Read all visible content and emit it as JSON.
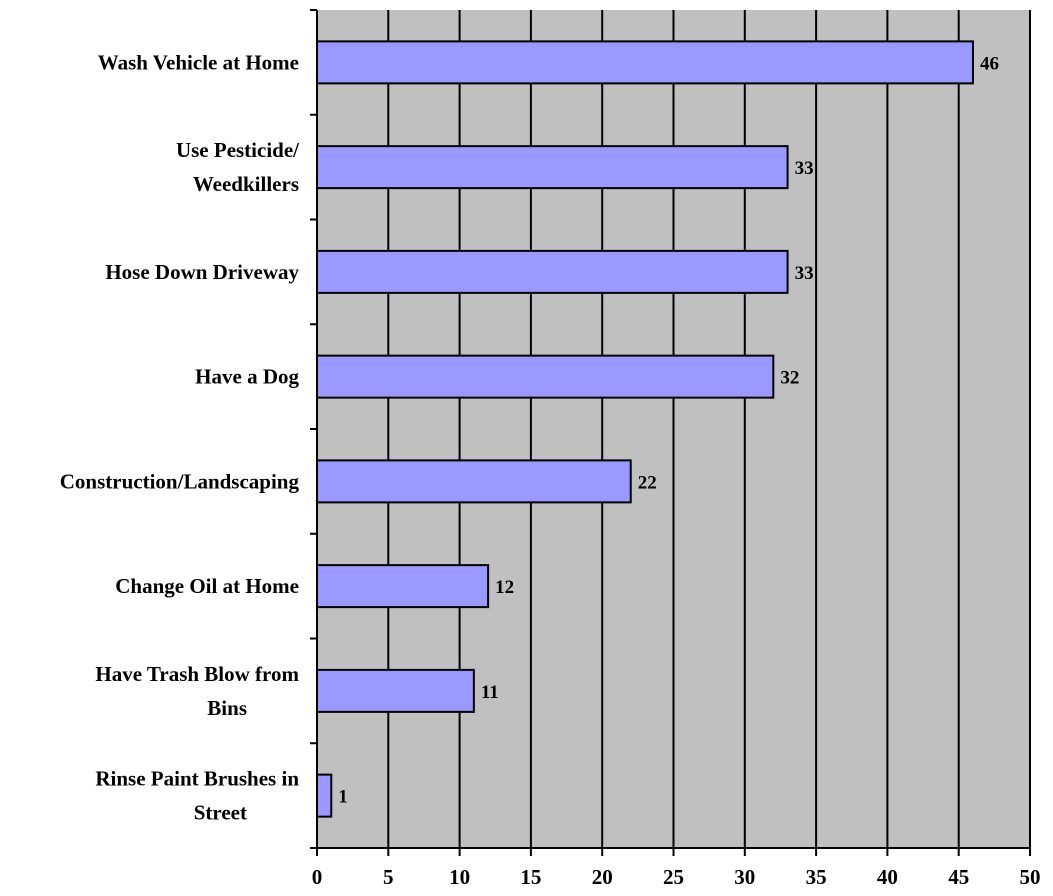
{
  "chart_data": {
    "type": "bar",
    "orientation": "horizontal",
    "categories": [
      "Wash Vehicle at Home",
      "Use Pesticide/\nWeedkillers",
      "Hose Down Driveway",
      "Have a Dog",
      "Construction/Landscaping",
      "Change Oil at Home",
      "Have Trash Blow from\nBins",
      "Rinse Paint Brushes in\nStreet"
    ],
    "values": [
      46,
      33,
      33,
      32,
      22,
      12,
      11,
      1
    ],
    "data_labels": [
      "46",
      "33",
      "33",
      "32",
      "22",
      "12",
      "11",
      "1"
    ],
    "x_ticks": [
      "0",
      "5",
      "10",
      "15",
      "20",
      "25",
      "30",
      "35",
      "40",
      "45",
      "50"
    ],
    "xlim": [
      0,
      50
    ],
    "title": "",
    "xlabel": "",
    "ylabel": "",
    "grid": "vertical",
    "legend": "none",
    "colors": {
      "bar_fill": "#9999ff",
      "bar_stroke": "#000000",
      "plot_background": "#c0c0c0",
      "grid": "#000000"
    }
  }
}
